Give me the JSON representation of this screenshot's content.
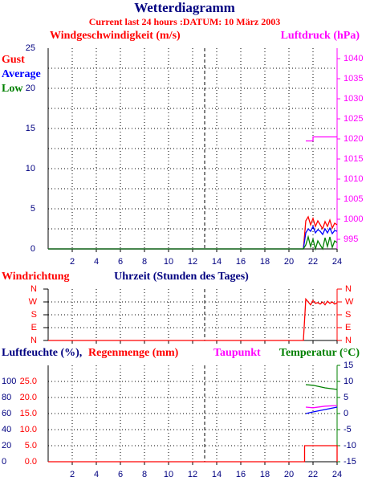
{
  "title": "Wetterdiagramm",
  "subtitle": "Current last 24 hours :DATUM: 10 März 2003",
  "chart_data": [
    {
      "type": "line",
      "ylabel": "Windgeschwindigkeit (m/s)",
      "y2label": "Luftdruck (hPa)",
      "grid": true,
      "xlim": [
        0,
        24
      ],
      "xticks": [
        2,
        4,
        6,
        8,
        10,
        12,
        14,
        16,
        18,
        20,
        22,
        24
      ],
      "vline": 13,
      "ylim": [
        0,
        25
      ],
      "yticks": [
        0,
        5,
        10,
        15,
        20,
        25
      ],
      "yminor": [
        2.5,
        7.5,
        12.5,
        17.5,
        22.5
      ],
      "y2lim": [
        992.6,
        1042.6
      ],
      "y2ticks": [
        995,
        1000,
        1005,
        1010,
        1015,
        1020,
        1025,
        1030,
        1035,
        1040
      ],
      "x": [
        0,
        21.2,
        21.4,
        21.6,
        21.8,
        22.0,
        22.2,
        22.4,
        22.6,
        22.8,
        23.0,
        23.2,
        23.4,
        23.6,
        23.8,
        24.0
      ],
      "series": [
        {
          "name": "Gust",
          "color": "#ff0000",
          "values": [
            0,
            0,
            3.5,
            4,
            3,
            3.8,
            2.8,
            3.5,
            3,
            2.5,
            3.4,
            2.8,
            3.6,
            2.6,
            3.2,
            3
          ]
        },
        {
          "name": "Average",
          "color": "#0000ff",
          "values": [
            0,
            0,
            2,
            2.5,
            2.2,
            2.8,
            2,
            2.4,
            2.2,
            1.8,
            2.5,
            2,
            2.6,
            1.9,
            2.3,
            2.2
          ]
        },
        {
          "name": "Low",
          "color": "#008000",
          "values": [
            0,
            0,
            0.5,
            1.5,
            0.3,
            1.2,
            0,
            1,
            0.5,
            0,
            1.4,
            0.3,
            1.5,
            0.2,
            1,
            0.8
          ]
        }
      ],
      "y2series": {
        "color": "#ff00ff",
        "x": [
          21.4,
          22.0,
          22.0,
          24.0
        ],
        "values": [
          1019.5,
          1019.5,
          1020.5,
          1020.5
        ]
      }
    },
    {
      "type": "line",
      "ylabel": "Windrichtung",
      "xlabel": "Uhrzeit (Stunden des Tages)",
      "grid": true,
      "xlim": [
        0,
        24
      ],
      "xticks": [
        2,
        4,
        6,
        8,
        10,
        12,
        14,
        16,
        18,
        20,
        22,
        24
      ],
      "vline": 13,
      "ylim": [
        0,
        360
      ],
      "yticks": [
        {
          "value": 0,
          "label": "N"
        },
        {
          "value": 90,
          "label": "E"
        },
        {
          "value": 180,
          "label": "S"
        },
        {
          "value": 270,
          "label": "W"
        },
        {
          "value": 360,
          "label": "N"
        }
      ],
      "x": [
        0,
        21.2,
        21.4,
        21.6,
        21.8,
        22.0,
        22.2,
        22.4,
        22.6,
        22.8,
        23.0,
        23.2,
        23.4,
        23.6,
        23.8,
        24.0
      ],
      "series": [
        {
          "color": "#ff0000",
          "values": [
            0,
            0,
            290,
            270,
            250,
            280,
            260,
            265,
            255,
            270,
            250,
            275,
            260,
            270,
            255,
            265
          ]
        }
      ]
    },
    {
      "type": "line",
      "ylabel": "Luftfeuchte (%),",
      "rainlabel": "Regenmenge (mm)",
      "dewlabel": "Taupunkt",
      "y2label": "Temperatur (°C)",
      "grid": true,
      "xlim": [
        0,
        24
      ],
      "xticks": [
        2,
        4,
        6,
        8,
        10,
        12,
        14,
        16,
        18,
        20,
        22,
        24
      ],
      "vline": 13,
      "ylim": [
        0,
        120
      ],
      "yticks": [
        0,
        20,
        40,
        60,
        80,
        100
      ],
      "rainlim": [
        0,
        30
      ],
      "rainticks": [
        {
          "value": 0,
          "label": "0.0"
        },
        {
          "value": 5,
          "label": "5.0"
        },
        {
          "value": 10,
          "label": "10.0"
        },
        {
          "value": 15,
          "label": "15.0"
        },
        {
          "value": 20,
          "label": "20.0"
        },
        {
          "value": 25,
          "label": "25.0"
        }
      ],
      "y2lim": [
        -15,
        15
      ],
      "y2ticks": [
        -15,
        -10,
        -5,
        0,
        5,
        10,
        15
      ],
      "series": [
        {
          "axis": "y",
          "color": "#0000ff",
          "x": [
            21.4,
            22,
            23,
            24
          ],
          "values": [
            60,
            62,
            65,
            68
          ]
        },
        {
          "axis": "rain",
          "color": "#ff0000",
          "x": [
            0,
            21.3,
            21.3,
            24,
            24
          ],
          "values": [
            0,
            0,
            5,
            5,
            0
          ]
        },
        {
          "axis": "y2",
          "color": "#ff00ff",
          "x": [
            21.4,
            22,
            23,
            24
          ],
          "values": [
            2,
            1.8,
            2.3,
            2.5
          ]
        },
        {
          "axis": "y2",
          "color": "#008000",
          "x": [
            21.4,
            22,
            23,
            24
          ],
          "values": [
            9,
            8.8,
            8,
            7.5
          ]
        }
      ]
    }
  ]
}
